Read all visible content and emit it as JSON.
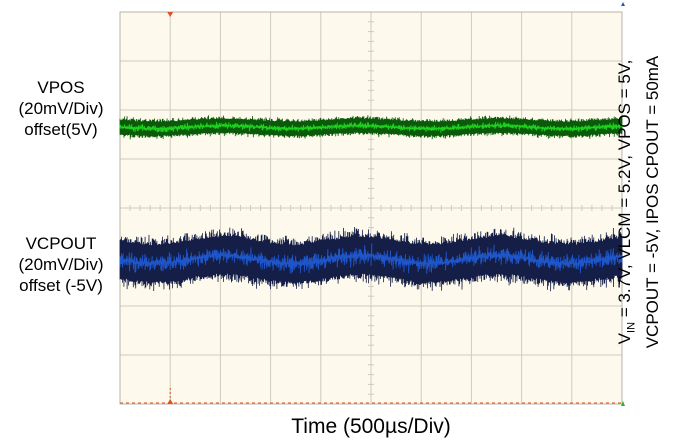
{
  "chart_data": {
    "type": "line",
    "title": "",
    "xlabel": "Time (500µs/Div)",
    "ylabel": "",
    "x_divisions": 10,
    "y_divisions": 8,
    "colors": {
      "plot_background": "#fdf9ec",
      "grid": "#cfcbbf",
      "vpos_core": "#22dd22",
      "vpos_edge": "#0a5a0a",
      "vcpout_core": "#1f5bd6",
      "vcpout_edge": "#141e46",
      "markers": "#e05020"
    },
    "series": [
      {
        "id": "vpos",
        "label_lines": [
          "VPOS",
          "(20mV/Div)",
          "offset(5V)"
        ],
        "center_div": 2.35,
        "noise_pp_div": 0.5
      },
      {
        "id": "vcpout",
        "label_lines": [
          "VCPOUT",
          "(20mV/Div)",
          "offset (-5V)"
        ],
        "center_div": 5.05,
        "noise_pp_div": 1.35
      }
    ],
    "conditions": {
      "vin_prefix": "V",
      "vin_sub": "IN",
      "line1_rest": " = 3.7V,  VLCM = 5.2V, VPOS = 5V,",
      "line2": "VCPOUT = -5V, IPOS  CPOUT = 50mA"
    }
  }
}
